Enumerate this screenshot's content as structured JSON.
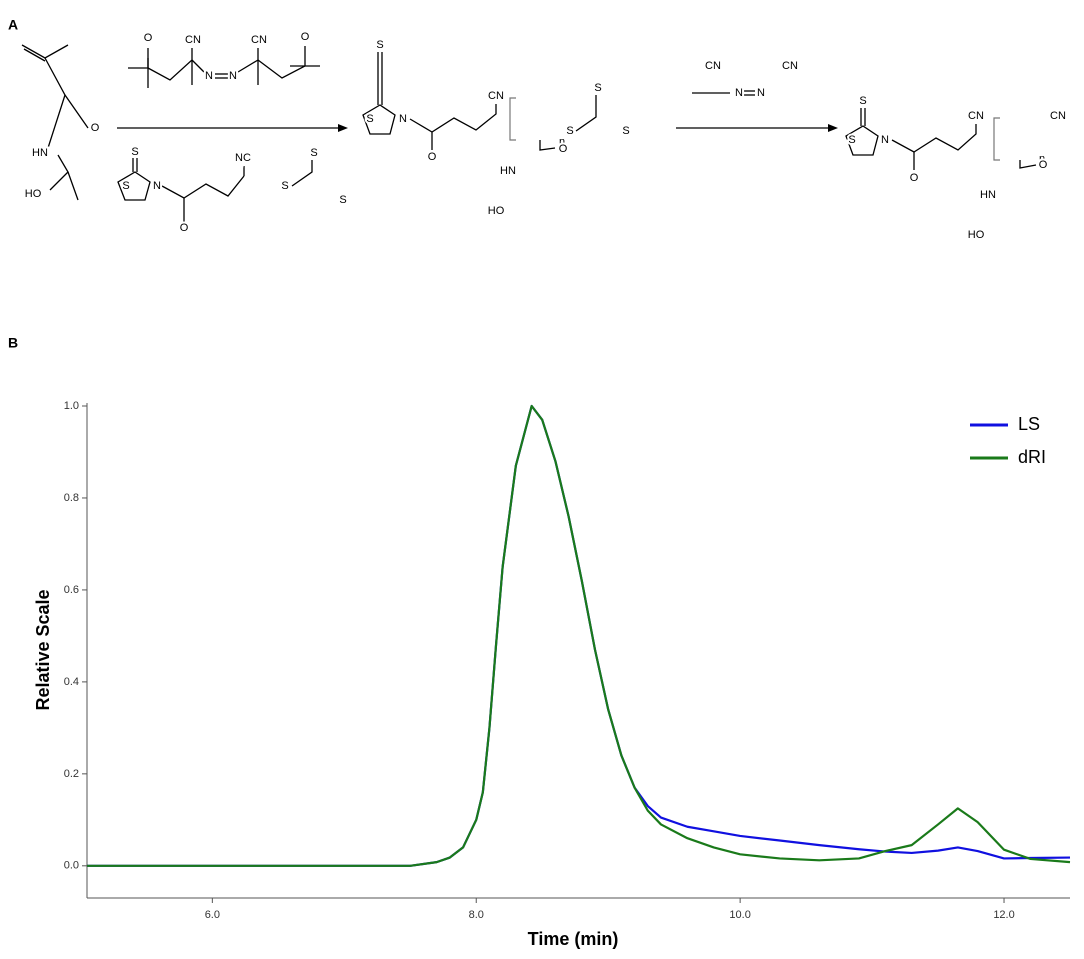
{
  "panel_labels": [
    "A",
    "B"
  ],
  "scheme": {
    "monomer": [
      "O",
      "HN",
      "HO"
    ],
    "initiator_1": [
      "O",
      "CN",
      "N",
      "N",
      "CN",
      "O"
    ],
    "cta": [
      "S",
      "S",
      "N",
      "O",
      "NC",
      "S",
      "S",
      "S"
    ],
    "polymer": [
      "S",
      "S",
      "N",
      "O",
      "CN",
      "S",
      "S",
      "S",
      "n",
      "O",
      "HN",
      "HO"
    ],
    "initiator_2": [
      "CN",
      "N",
      "N",
      "CN"
    ],
    "end_capped_polymer": [
      "S",
      "S",
      "N",
      "O",
      "CN",
      "n",
      "O",
      "CN",
      "HN",
      "HO"
    ]
  },
  "chart_data": {
    "type": "line",
    "xlabel": "Time (min)",
    "ylabel": "Relative Scale",
    "x": [
      5.05,
      5.5,
      6,
      6.5,
      7,
      7.5,
      7.7,
      7.8,
      7.9,
      8.0,
      8.05,
      8.1,
      8.15,
      8.2,
      8.3,
      8.42,
      8.5,
      8.6,
      8.7,
      8.8,
      8.9,
      9.0,
      9.1,
      9.2,
      9.3,
      9.4,
      9.6,
      9.8,
      10.0,
      10.3,
      10.6,
      10.9,
      11.1,
      11.3,
      11.5,
      11.65,
      11.8,
      12.0,
      12.2,
      12.5
    ],
    "series": [
      {
        "name": "LS",
        "color": "#1010e0",
        "values": [
          0,
          0,
          0,
          0,
          0,
          0,
          0.008,
          0.018,
          0.04,
          0.1,
          0.16,
          0.3,
          0.48,
          0.65,
          0.87,
          1.0,
          0.97,
          0.88,
          0.76,
          0.62,
          0.47,
          0.34,
          0.24,
          0.17,
          0.13,
          0.105,
          0.085,
          0.075,
          0.065,
          0.055,
          0.045,
          0.036,
          0.031,
          0.028,
          0.033,
          0.04,
          0.032,
          0.016,
          0.017,
          0.018
        ]
      },
      {
        "name": "dRI",
        "color": "#1a7a1a",
        "values": [
          0,
          0,
          0,
          0,
          0,
          0,
          0.008,
          0.018,
          0.04,
          0.1,
          0.16,
          0.3,
          0.48,
          0.65,
          0.87,
          1.0,
          0.97,
          0.88,
          0.76,
          0.62,
          0.47,
          0.34,
          0.24,
          0.17,
          0.12,
          0.09,
          0.06,
          0.04,
          0.025,
          0.016,
          0.012,
          0.016,
          0.032,
          0.045,
          0.09,
          0.125,
          0.095,
          0.035,
          0.015,
          0.008
        ]
      }
    ],
    "xlim": [
      5.05,
      12.5
    ],
    "ylim": [
      -0.07,
      1.0
    ],
    "xticks": [
      {
        "value": 6,
        "label": "6.0"
      },
      {
        "value": 8,
        "label": "8.0"
      },
      {
        "value": 10,
        "label": "10.0"
      },
      {
        "value": 12,
        "label": "12.0"
      }
    ],
    "yticks": [
      {
        "value": 0,
        "label": "0.0"
      },
      {
        "value": 0.2,
        "label": "0.2"
      },
      {
        "value": 0.4,
        "label": "0.4"
      },
      {
        "value": 0.6,
        "label": "0.6"
      },
      {
        "value": 0.8,
        "label": "0.8"
      },
      {
        "value": 1.0,
        "label": "1.0"
      }
    ],
    "legend": "upper right"
  }
}
